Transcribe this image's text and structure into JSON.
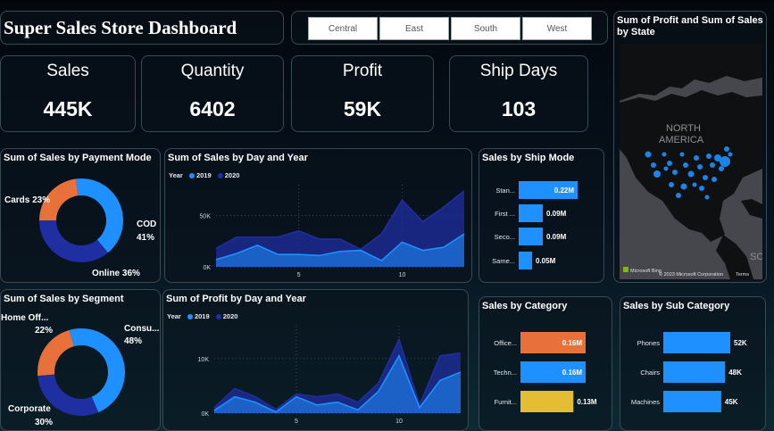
{
  "dashboard": {
    "title": "Super Sales Store Dashboard"
  },
  "slicer": {
    "regions": [
      "Central",
      "East",
      "South",
      "West"
    ]
  },
  "kpis": [
    {
      "label": "Sales",
      "value": "445K"
    },
    {
      "label": "Quantity",
      "value": "6402"
    },
    {
      "label": "Profit",
      "value": "59K"
    },
    {
      "label": "Ship Days",
      "value": "103"
    }
  ],
  "map": {
    "title": "Sum of Profit and Sum of Sales by State",
    "region_label_1": "NORTH",
    "region_label_2": "AMERICA",
    "region_label_3": "SO",
    "bing_label": "Microsoft Bing",
    "copyright": "© 2023 Microsoft Corporation",
    "terms": "Terms"
  },
  "colors": {
    "blue": "#1e90ff",
    "navy": "#1f2ea0",
    "orange": "#e8703a",
    "yellow": "#e5bd35",
    "green_bg": "#0c2a33"
  },
  "chart_data": [
    {
      "type": "pie",
      "title": "Sum of Sales by Payment Mode",
      "labels": [
        "Cards",
        "COD",
        "Online"
      ],
      "values": [
        23,
        41,
        36
      ],
      "label_texts": [
        "Cards 23%",
        "COD",
        "41%",
        "Online 36%"
      ],
      "colors": [
        "#e8703a",
        "#1e90ff",
        "#1f2ea0"
      ]
    },
    {
      "type": "area",
      "title": "Sum of Sales by Day and Year",
      "legend_title": "Year",
      "x": [
        1,
        2,
        3,
        4,
        5,
        6,
        7,
        8,
        9,
        10,
        11,
        12,
        13
      ],
      "series": [
        {
          "name": "2019",
          "values": [
            7000,
            13000,
            21000,
            12000,
            12000,
            11000,
            15000,
            16000,
            6000,
            24000,
            16000,
            19000,
            32000
          ]
        },
        {
          "name": "2020",
          "values": [
            18000,
            29000,
            29000,
            29000,
            35000,
            27000,
            27000,
            17000,
            32000,
            65000,
            44000,
            58000,
            74000
          ]
        }
      ],
      "x_ticks": [
        "5",
        "10"
      ],
      "y_ticks": [
        "0K",
        "50K"
      ],
      "ylim": [
        0,
        80000
      ]
    },
    {
      "type": "bar",
      "title": "Sales by Ship Mode",
      "categories": [
        "Stan...",
        "First ...",
        "Seco...",
        "Same..."
      ],
      "values": [
        0.22,
        0.09,
        0.09,
        0.05
      ],
      "value_labels": [
        "0.22M",
        "0.09M",
        "0.09M",
        "0.05M"
      ]
    },
    {
      "type": "pie",
      "title": "Sum of Sales by Segment",
      "labels": [
        "Home Off...",
        "Consu...",
        "Corporate"
      ],
      "values": [
        22,
        48,
        30
      ],
      "label_texts": [
        "Home Off...",
        "22%",
        "Consu...",
        "48%",
        "Corporate",
        "30%"
      ],
      "colors": [
        "#e8703a",
        "#1e90ff",
        "#1f2ea0"
      ]
    },
    {
      "type": "area",
      "title": "Sum of Profit by Day and Year",
      "legend_title": "Year",
      "x": [
        1,
        2,
        3,
        4,
        5,
        6,
        7,
        8,
        9,
        10,
        11,
        12,
        13
      ],
      "series": [
        {
          "name": "2019",
          "values": [
            500,
            3000,
            2000,
            200,
            3000,
            1500,
            2000,
            600,
            4000,
            10500,
            1000,
            6000,
            7500
          ]
        },
        {
          "name": "2020",
          "values": [
            1000,
            4500,
            3000,
            700,
            3500,
            3000,
            3500,
            2000,
            5500,
            13500,
            1500,
            10500,
            11000
          ]
        }
      ],
      "x_ticks": [
        "5",
        "10"
      ],
      "y_ticks": [
        "0K",
        "10K"
      ],
      "ylim": [
        0,
        16000
      ]
    },
    {
      "type": "bar",
      "title": "Sales by Category",
      "categories": [
        "Office...",
        "Techn...",
        "Furnit..."
      ],
      "values": [
        0.16,
        0.16,
        0.13
      ],
      "value_labels": [
        "0.16M",
        "0.16M",
        "0.13M"
      ],
      "colors": [
        "#e8703a",
        "#1e90ff",
        "#e5bd35"
      ]
    },
    {
      "type": "bar",
      "title": "Sales by Sub Category",
      "categories": [
        "Phones",
        "Chairs",
        "Machines"
      ],
      "values": [
        52,
        48,
        45
      ],
      "value_labels": [
        "52K",
        "48K",
        "45K"
      ]
    }
  ]
}
